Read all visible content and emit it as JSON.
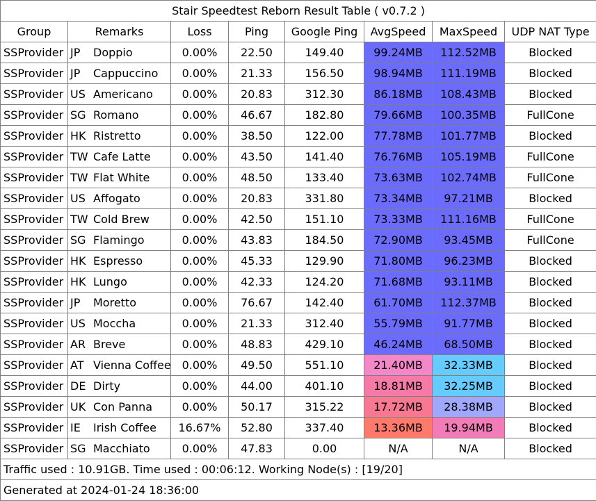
{
  "title": "Stair Speedtest Reborn Result Table ( v0.7.2 )",
  "headers": {
    "group": "Group",
    "remarks": "Remarks",
    "loss": "Loss",
    "ping": "Ping",
    "google_ping": "Google Ping",
    "avg_speed": "AvgSpeed",
    "max_speed": "MaxSpeed",
    "udp_nat": "UDP NAT Type"
  },
  "rows": [
    {
      "group": "SSProvider",
      "country": "JP",
      "name": "Doppio",
      "loss": "0.00%",
      "ping": "22.50",
      "gping": "149.40",
      "avg": "99.24MB",
      "max": "112.52MB",
      "nat": "Blocked",
      "avg_color": "#6c6cfc",
      "max_color": "#6c6cfc"
    },
    {
      "group": "SSProvider",
      "country": "JP",
      "name": "Cappuccino",
      "loss": "0.00%",
      "ping": "21.33",
      "gping": "156.50",
      "avg": "98.94MB",
      "max": "111.19MB",
      "nat": "Blocked",
      "avg_color": "#6c6cfc",
      "max_color": "#6c6cfc"
    },
    {
      "group": "SSProvider",
      "country": "US",
      "name": "Americano",
      "loss": "0.00%",
      "ping": "20.83",
      "gping": "312.30",
      "avg": "86.18MB",
      "max": "108.43MB",
      "nat": "Blocked",
      "avg_color": "#6c6cfc",
      "max_color": "#6c6cfc"
    },
    {
      "group": "SSProvider",
      "country": "SG",
      "name": "Romano",
      "loss": "0.00%",
      "ping": "46.67",
      "gping": "182.80",
      "avg": "79.66MB",
      "max": "100.35MB",
      "nat": "FullCone",
      "avg_color": "#6c6cfc",
      "max_color": "#6c6cfc"
    },
    {
      "group": "SSProvider",
      "country": "HK",
      "name": "Ristretto",
      "loss": "0.00%",
      "ping": "38.50",
      "gping": "122.00",
      "avg": "77.78MB",
      "max": "101.77MB",
      "nat": "Blocked",
      "avg_color": "#6c6cfc",
      "max_color": "#6c6cfc"
    },
    {
      "group": "SSProvider",
      "country": "TW",
      "name": "Cafe Latte",
      "loss": "0.00%",
      "ping": "43.50",
      "gping": "141.40",
      "avg": "76.76MB",
      "max": "105.19MB",
      "nat": "FullCone",
      "avg_color": "#6c6cfc",
      "max_color": "#6c6cfc"
    },
    {
      "group": "SSProvider",
      "country": "TW",
      "name": "Flat White",
      "loss": "0.00%",
      "ping": "48.50",
      "gping": "133.40",
      "avg": "73.63MB",
      "max": "102.74MB",
      "nat": "FullCone",
      "avg_color": "#6c6cfc",
      "max_color": "#6c6cfc"
    },
    {
      "group": "SSProvider",
      "country": "US",
      "name": "Affogato",
      "loss": "0.00%",
      "ping": "20.83",
      "gping": "331.80",
      "avg": "73.34MB",
      "max": "97.21MB",
      "nat": "Blocked",
      "avg_color": "#6c6cfc",
      "max_color": "#6c6cfc"
    },
    {
      "group": "SSProvider",
      "country": "TW",
      "name": "Cold Brew",
      "loss": "0.00%",
      "ping": "42.50",
      "gping": "151.10",
      "avg": "73.33MB",
      "max": "111.16MB",
      "nat": "FullCone",
      "avg_color": "#6c6cfc",
      "max_color": "#6c6cfc"
    },
    {
      "group": "SSProvider",
      "country": "SG",
      "name": "Flamingo",
      "loss": "0.00%",
      "ping": "43.83",
      "gping": "184.50",
      "avg": "72.90MB",
      "max": "93.45MB",
      "nat": "FullCone",
      "avg_color": "#6c6cfc",
      "max_color": "#6c6cfc"
    },
    {
      "group": "SSProvider",
      "country": "HK",
      "name": "Espresso",
      "loss": "0.00%",
      "ping": "45.33",
      "gping": "129.90",
      "avg": "71.80MB",
      "max": "96.23MB",
      "nat": "Blocked",
      "avg_color": "#6c6cfc",
      "max_color": "#6c6cfc"
    },
    {
      "group": "SSProvider",
      "country": "HK",
      "name": "Lungo",
      "loss": "0.00%",
      "ping": "42.33",
      "gping": "124.20",
      "avg": "71.68MB",
      "max": "93.11MB",
      "nat": "Blocked",
      "avg_color": "#6c6cfc",
      "max_color": "#6c6cfc"
    },
    {
      "group": "SSProvider",
      "country": "JP",
      "name": "Moretto",
      "loss": "0.00%",
      "ping": "76.67",
      "gping": "142.40",
      "avg": "61.70MB",
      "max": "112.37MB",
      "nat": "Blocked",
      "avg_color": "#6c6cfc",
      "max_color": "#6c6cfc"
    },
    {
      "group": "SSProvider",
      "country": "US",
      "name": "Moccha",
      "loss": "0.00%",
      "ping": "21.33",
      "gping": "312.40",
      "avg": "55.79MB",
      "max": "91.77MB",
      "nat": "Blocked",
      "avg_color": "#6c6cfc",
      "max_color": "#6c6cfc"
    },
    {
      "group": "SSProvider",
      "country": "AR",
      "name": "Breve",
      "loss": "0.00%",
      "ping": "48.83",
      "gping": "429.10",
      "avg": "46.24MB",
      "max": "68.50MB",
      "nat": "Blocked",
      "avg_color": "#6c6cfc",
      "max_color": "#6c6cfc"
    },
    {
      "group": "SSProvider",
      "country": "AT",
      "name": "Vienna Coffee",
      "loss": "0.00%",
      "ping": "49.50",
      "gping": "551.10",
      "avg": "21.40MB",
      "max": "32.33MB",
      "nat": "Blocked",
      "avg_color": "#f487c8",
      "max_color": "#66cbff"
    },
    {
      "group": "SSProvider",
      "country": "DE",
      "name": "Dirty",
      "loss": "0.00%",
      "ping": "44.00",
      "gping": "401.10",
      "avg": "18.81MB",
      "max": "32.25MB",
      "nat": "Blocked",
      "avg_color": "#f67aa8",
      "max_color": "#66cbff"
    },
    {
      "group": "SSProvider",
      "country": "UK",
      "name": "Con Panna",
      "loss": "0.00%",
      "ping": "50.17",
      "gping": "315.22",
      "avg": "17.72MB",
      "max": "28.38MB",
      "nat": "Blocked",
      "avg_color": "#f77890",
      "max_color": "#a0a8fc"
    },
    {
      "group": "SSProvider",
      "country": "IE",
      "name": "Irish Coffee",
      "loss": "16.67%",
      "ping": "52.80",
      "gping": "337.40",
      "avg": "13.36MB",
      "max": "19.94MB",
      "nat": "Blocked",
      "avg_color": "#ff7a6b",
      "max_color": "#f27cb7"
    },
    {
      "group": "SSProvider",
      "country": "SG",
      "name": "Macchiato",
      "loss": "0.00%",
      "ping": "47.83",
      "gping": "0.00",
      "avg": "N/A",
      "max": "N/A",
      "nat": "Blocked",
      "avg_color": "#ffffff",
      "max_color": "#ffffff"
    }
  ],
  "footer": {
    "traffic": "Traffic used : 10.91GB. Time used : 00:06:12. Working Node(s) : [19/20]",
    "generated": "Generated at 2024-01-24 18:36:00"
  }
}
